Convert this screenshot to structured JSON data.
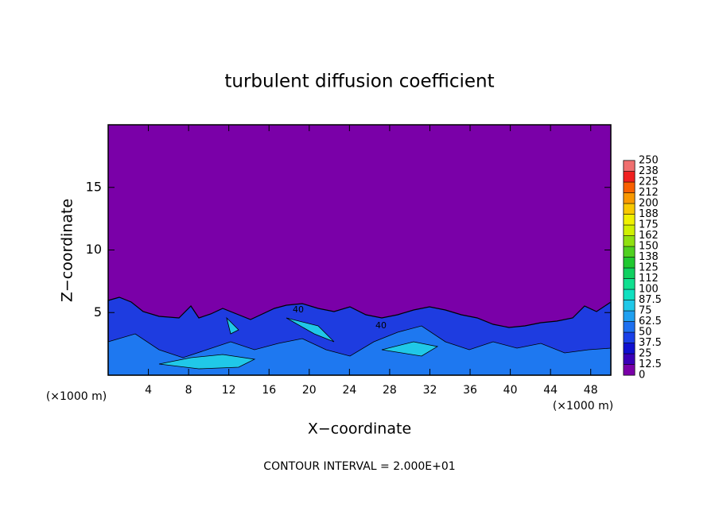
{
  "chart_data": {
    "type": "contour",
    "title": "turbulent diffusion coefficient",
    "x_label": "X−coordinate",
    "y_label": "Z−coordinate",
    "x_unit_label": "(×1000 m)",
    "y_unit_label": "(×1000 m)",
    "footnote": "CONTOUR INTERVAL = 2.000E+01",
    "contour_labels": [
      "40",
      "40"
    ],
    "xlim": [
      0,
      50
    ],
    "xticks": [
      4,
      8,
      12,
      16,
      20,
      24,
      28,
      32,
      36,
      40,
      44,
      48
    ],
    "ylim": [
      0,
      20
    ],
    "yticks": [
      5,
      10,
      15
    ],
    "colorbar": {
      "levels": [
        0,
        12.5,
        25,
        37.5,
        50,
        62.5,
        75,
        87.5,
        100,
        112,
        125,
        138,
        150,
        162,
        175,
        188,
        200,
        212,
        225,
        238,
        250
      ],
      "colors": [
        "#7a00a8",
        "#3a00b8",
        "#1010d0",
        "#1a40e8",
        "#1e70f0",
        "#20a0f0",
        "#20c8e8",
        "#10e0c0",
        "#10e090",
        "#10d060",
        "#20c830",
        "#50d020",
        "#90e010",
        "#d0f000",
        "#f0f000",
        "#f8c800",
        "#f89800",
        "#f86000",
        "#f02020",
        "#f07070"
      ]
    }
  }
}
